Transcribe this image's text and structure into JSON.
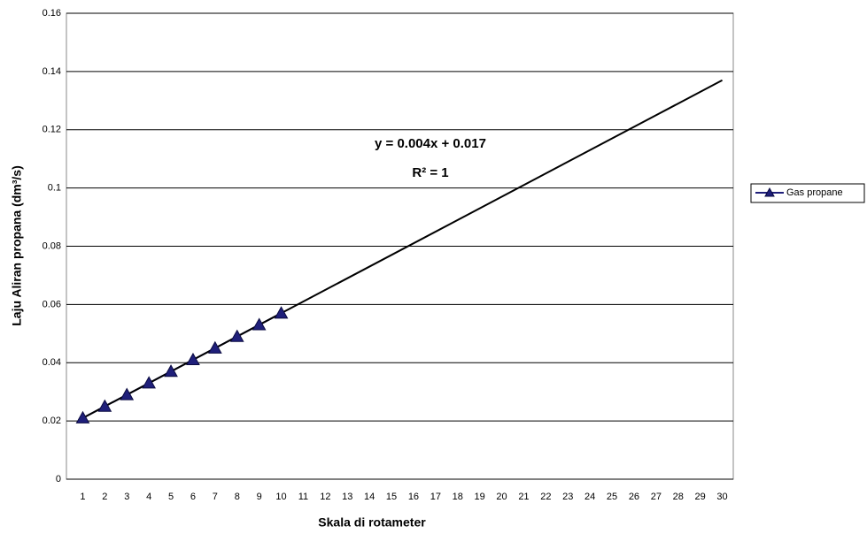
{
  "chart_data": {
    "type": "line",
    "x_label": "Skala di rotameter",
    "y_label": "Laju Aliran propana (dm³/s)",
    "categories": [
      "1",
      "2",
      "3",
      "4",
      "5",
      "6",
      "7",
      "8",
      "9",
      "10",
      "11",
      "12",
      "13",
      "14",
      "15",
      "16",
      "17",
      "18",
      "19",
      "20",
      "21",
      "22",
      "23",
      "24",
      "25",
      "26",
      "27",
      "28",
      "29",
      "30"
    ],
    "series": [
      {
        "name": "Gas propane",
        "color": "#1f1f7a",
        "values": [
          0.021,
          0.025,
          0.029,
          0.033,
          0.037,
          0.041,
          0.045,
          0.049,
          0.053,
          0.057,
          null,
          null,
          null,
          null,
          null,
          null,
          null,
          null,
          null,
          null,
          null,
          null,
          null,
          null,
          null,
          null,
          null,
          null,
          null,
          null
        ]
      }
    ],
    "trendline": {
      "x": [
        1,
        30
      ],
      "values": [
        0.021,
        0.137
      ],
      "color": "#000000"
    },
    "annotations": [
      "y = 0.004x + 0.017",
      "R² = 1"
    ],
    "ylim": [
      0,
      0.16
    ],
    "yticks": [
      0,
      0.02,
      0.04,
      0.06,
      0.08,
      0.1,
      0.12,
      0.14,
      0.16
    ],
    "grid": true,
    "legend": "right"
  }
}
